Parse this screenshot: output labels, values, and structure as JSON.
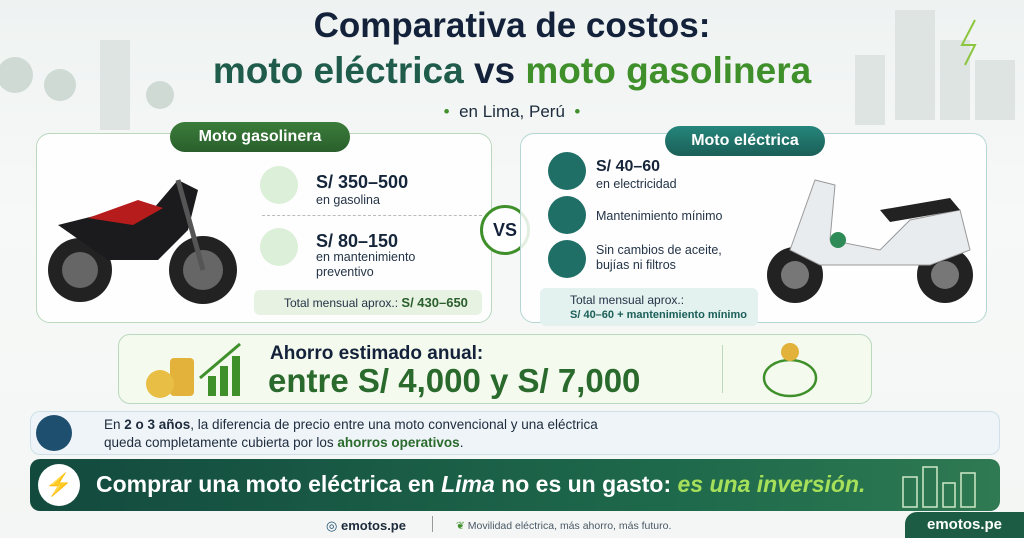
{
  "header": {
    "title_line1": "Comparativa de costos:",
    "title_electric": "moto eléctrica",
    "title_vs": "vs",
    "title_gas": "moto gasolinera",
    "subtitle": "en Lima, Perú"
  },
  "gas_panel": {
    "label": "Moto gasolinera",
    "items": [
      {
        "amount": "S/ 350–500",
        "text": "en gasolina"
      },
      {
        "amount": "S/ 80–150",
        "text": "en mantenimiento preventivo"
      }
    ],
    "total_label": "Total mensual aprox.:",
    "total_value": "S/ 430–650"
  },
  "versus": "VS",
  "electric_panel": {
    "label": "Moto eléctrica",
    "items": [
      {
        "amount": "S/ 40–60",
        "text": "en electricidad"
      },
      {
        "text": "Mantenimiento mínimo"
      },
      {
        "text": "Sin cambios de aceite, bujías ni filtros"
      }
    ],
    "total_label": "Total mensual aprox.:",
    "total_value": "S/ 40–60 + mantenimiento mínimo"
  },
  "savings": {
    "label": "Ahorro estimado anual:",
    "value": "entre S/ 4,000 y S/ 7,000"
  },
  "note": {
    "parts": [
      "En ",
      "2 o 3 años",
      ", la diferencia de precio entre una moto convencional y una eléctrica queda completamente cubierta por los ",
      "ahorros operativos",
      "."
    ]
  },
  "banner": {
    "parts": [
      "Comprar una moto eléctrica en ",
      "Lima",
      " no es un gasto: ",
      "es una inversión."
    ]
  },
  "footer": {
    "site": "emotos.pe",
    "tagline": "Movilidad eléctrica, más ahorro, más futuro.",
    "badge": "emotos.pe"
  }
}
